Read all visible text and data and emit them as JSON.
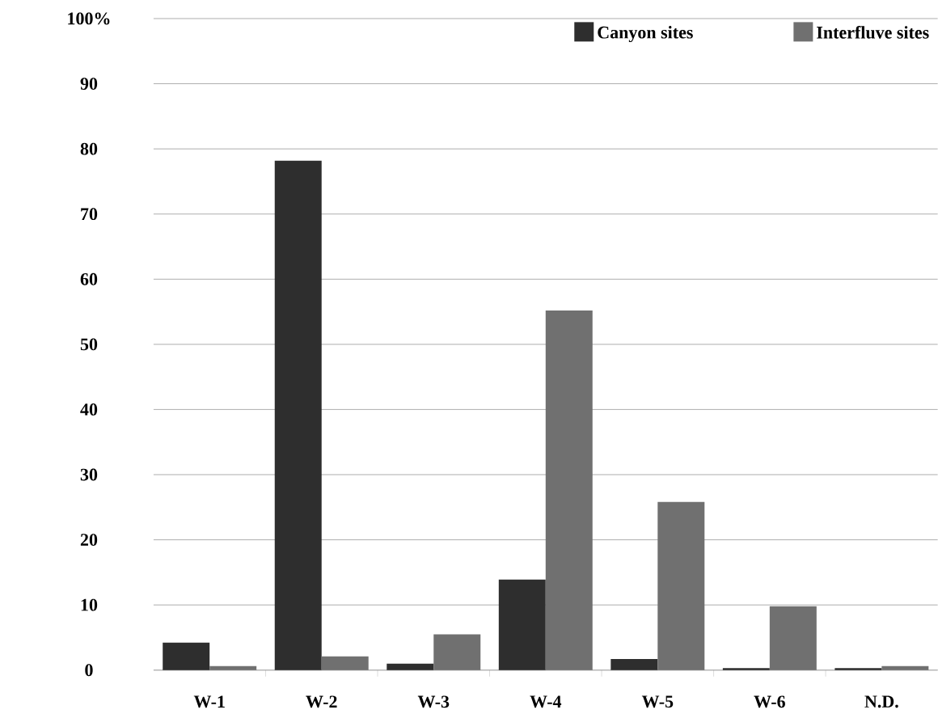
{
  "chart_data": {
    "type": "bar",
    "categories": [
      "W-1",
      "W-2",
      "W-3",
      "W-4",
      "W-5",
      "W-6",
      "N.D."
    ],
    "series": [
      {
        "name": "Canyon sites",
        "color": "#2e2e2e",
        "values": [
          4.2,
          78.2,
          1.0,
          13.9,
          1.7,
          0.3,
          0.3
        ]
      },
      {
        "name": "Interfluve sites",
        "color": "#707070",
        "values": [
          0.6,
          2.1,
          5.5,
          55.2,
          25.8,
          9.8,
          0.6
        ]
      }
    ],
    "ylim": [
      0,
      100
    ],
    "yticks": [
      0,
      10,
      20,
      30,
      40,
      50,
      60,
      70,
      80,
      90,
      {
        "value": 100,
        "label": "100%"
      }
    ],
    "grid": "y",
    "legend": "top right"
  }
}
